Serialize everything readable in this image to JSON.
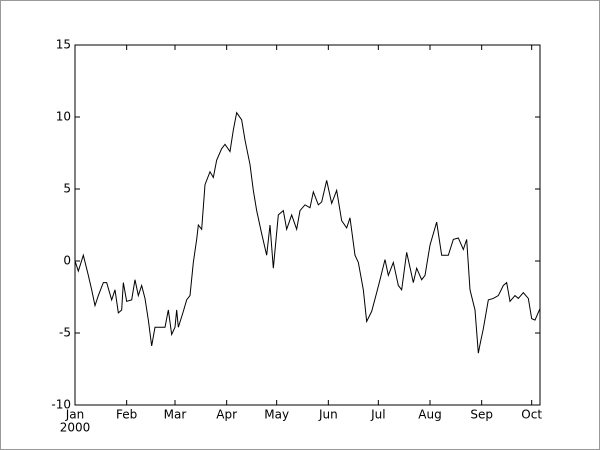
{
  "chart_data": {
    "type": "line",
    "color": "#000000",
    "x": [
      0,
      2,
      5,
      8,
      10,
      12,
      14,
      17,
      19,
      22,
      24,
      26,
      28,
      29,
      31,
      34,
      36,
      38,
      40,
      42,
      44,
      46,
      48,
      51,
      54,
      56,
      58,
      60,
      61,
      62,
      65,
      67,
      69,
      71,
      73,
      74,
      76,
      78,
      81,
      83,
      85,
      88,
      90,
      93,
      95,
      97,
      100,
      102,
      105,
      107,
      109,
      112,
      115,
      117,
      119,
      122,
      125,
      127,
      130,
      133,
      135,
      138,
      141,
      143,
      146,
      148,
      151,
      154,
      157,
      160,
      163,
      165,
      168,
      170,
      173,
      175,
      178,
      181,
      183,
      186,
      188,
      191,
      194,
      196,
      199,
      203,
      205,
      208,
      210,
      213,
      217,
      220,
      224,
      227,
      230,
      233,
      235,
      237,
      240,
      242,
      243,
      245,
      248,
      251,
      254,
      257,
      259,
      261,
      264,
      266,
      269,
      272,
      274,
      276,
      279
    ],
    "values": [
      0,
      -0.7,
      0.4,
      -1,
      -2,
      -3.1,
      -2.4,
      -1.5,
      -1.5,
      -2.7,
      -2,
      -3.6,
      -3.4,
      -1.5,
      -2.8,
      -2.7,
      -1.3,
      -2.4,
      -1.7,
      -2.6,
      -4.1,
      -5.9,
      -4.6,
      -4.6,
      -4.6,
      -3.4,
      -5.1,
      -4.6,
      -3.4,
      -4.6,
      -3.5,
      -2.7,
      -2.4,
      -0.1,
      1.5,
      2.5,
      2.2,
      5.3,
      6.2,
      5.8,
      7,
      7.8,
      8.1,
      7.6,
      9.1,
      10.3,
      9.8,
      8.4,
      6.7,
      4.9,
      3.5,
      1.9,
      0.4,
      2.5,
      -0.5,
      3.2,
      3.5,
      2.2,
      3.2,
      2.2,
      3.5,
      3.9,
      3.7,
      4.8,
      3.9,
      4.1,
      5.6,
      4,
      4.9,
      2.8,
      2.3,
      3,
      0.4,
      -0.1,
      -2,
      -4.2,
      -3.5,
      -2.2,
      -1.3,
      0.1,
      -1,
      -0.1,
      -1.7,
      -2,
      0.6,
      -1.5,
      -0.5,
      -1.3,
      -1,
      1.1,
      2.7,
      0.4,
      0.4,
      1.5,
      1.6,
      0.8,
      1.5,
      -2,
      -3.4,
      -6.4,
      -5.8,
      -4.7,
      -2.7,
      -2.6,
      -2.4,
      -1.7,
      -1.5,
      -2.8,
      -2.4,
      -2.6,
      -2.2,
      -2.6,
      -4,
      -4.1,
      -3.3
    ],
    "xlim": [
      0,
      279
    ],
    "xticks": [
      {
        "value": 0,
        "label": "Jan"
      },
      {
        "value": 31,
        "label": "Feb"
      },
      {
        "value": 60,
        "label": "Mar"
      },
      {
        "value": 91,
        "label": "Apr"
      },
      {
        "value": 121,
        "label": "May"
      },
      {
        "value": 152,
        "label": "Jun"
      },
      {
        "value": 182,
        "label": "Jul"
      },
      {
        "value": 213,
        "label": "Aug"
      },
      {
        "value": 244,
        "label": "Sep"
      },
      {
        "value": 274,
        "label": "Oct"
      }
    ],
    "x_year_label": "2000",
    "ylim": [
      -10,
      15
    ],
    "yticks": [
      -10,
      -5,
      0,
      5,
      10,
      15
    ]
  }
}
